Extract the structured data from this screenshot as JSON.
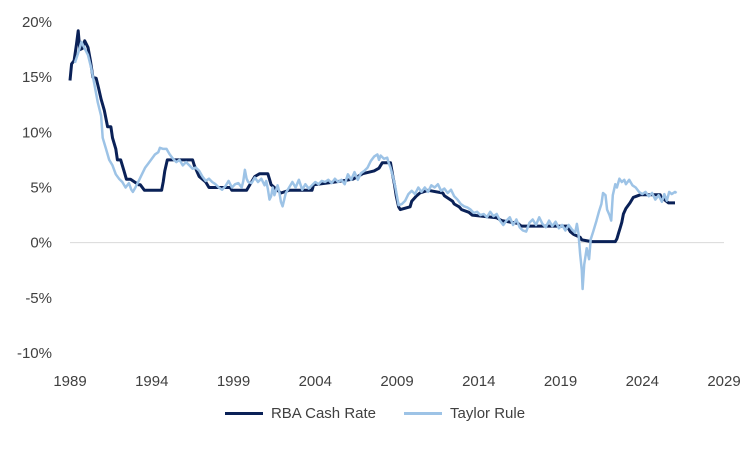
{
  "chart_data": {
    "type": "line",
    "title": "",
    "xlabel": "",
    "ylabel": "",
    "xlim": [
      1989,
      2029
    ],
    "ylim": [
      -10,
      20
    ],
    "x_ticks": [
      "1989",
      "1994",
      "1999",
      "2004",
      "2009",
      "2014",
      "2019",
      "2024",
      "2029"
    ],
    "y_ticks": [
      "-10%",
      "-5%",
      "0%",
      "5%",
      "10%",
      "15%",
      "20%"
    ],
    "grid": false,
    "legend_position": "bottom",
    "series": [
      {
        "name": "RBA Cash Rate",
        "color": "#0a2157",
        "points": [
          [
            1989.0,
            14.7
          ],
          [
            1989.1,
            16.2
          ],
          [
            1989.25,
            16.5
          ],
          [
            1989.4,
            18.0
          ],
          [
            1989.5,
            19.2
          ],
          [
            1989.6,
            17.5
          ],
          [
            1989.75,
            17.6
          ],
          [
            1989.9,
            18.3
          ],
          [
            1990.1,
            17.7
          ],
          [
            1990.25,
            16.5
          ],
          [
            1990.4,
            15.0
          ],
          [
            1990.6,
            14.9
          ],
          [
            1990.75,
            14.0
          ],
          [
            1990.9,
            13.0
          ],
          [
            1991.1,
            12.0
          ],
          [
            1991.3,
            10.5
          ],
          [
            1991.5,
            10.5
          ],
          [
            1991.6,
            9.5
          ],
          [
            1991.8,
            8.5
          ],
          [
            1991.9,
            7.5
          ],
          [
            1992.1,
            7.5
          ],
          [
            1992.3,
            6.5
          ],
          [
            1992.45,
            5.75
          ],
          [
            1992.7,
            5.75
          ],
          [
            1993.2,
            5.25
          ],
          [
            1993.3,
            5.25
          ],
          [
            1993.55,
            4.75
          ],
          [
            1994.6,
            4.75
          ],
          [
            1994.7,
            5.5
          ],
          [
            1994.8,
            6.5
          ],
          [
            1994.95,
            7.5
          ],
          [
            1996.5,
            7.5
          ],
          [
            1996.6,
            7.0
          ],
          [
            1996.75,
            6.5
          ],
          [
            1996.9,
            6.0
          ],
          [
            1997.3,
            5.5
          ],
          [
            1997.5,
            5.0
          ],
          [
            1998.8,
            5.0
          ],
          [
            1998.9,
            4.75
          ],
          [
            1999.8,
            4.75
          ],
          [
            1999.9,
            5.0
          ],
          [
            2000.1,
            5.5
          ],
          [
            2000.3,
            6.0
          ],
          [
            2000.6,
            6.25
          ],
          [
            2001.1,
            6.25
          ],
          [
            2001.2,
            5.75
          ],
          [
            2001.3,
            5.25
          ],
          [
            2001.5,
            5.0
          ],
          [
            2001.7,
            4.75
          ],
          [
            2001.9,
            4.5
          ],
          [
            2002.4,
            4.75
          ],
          [
            2002.5,
            4.75
          ],
          [
            2003.8,
            4.75
          ],
          [
            2003.9,
            5.25
          ],
          [
            2005.2,
            5.5
          ],
          [
            2006.3,
            5.75
          ],
          [
            2006.6,
            6.0
          ],
          [
            2006.9,
            6.25
          ],
          [
            2007.6,
            6.5
          ],
          [
            2007.9,
            6.75
          ],
          [
            2008.1,
            7.25
          ],
          [
            2008.6,
            7.25
          ],
          [
            2008.75,
            6.0
          ],
          [
            2008.85,
            5.25
          ],
          [
            2008.95,
            4.25
          ],
          [
            2009.1,
            3.25
          ],
          [
            2009.2,
            3.0
          ],
          [
            2009.8,
            3.25
          ],
          [
            2009.9,
            3.75
          ],
          [
            2010.2,
            4.25
          ],
          [
            2010.4,
            4.5
          ],
          [
            2010.9,
            4.75
          ],
          [
            2011.8,
            4.5
          ],
          [
            2011.9,
            4.25
          ],
          [
            2012.4,
            3.75
          ],
          [
            2012.5,
            3.5
          ],
          [
            2012.8,
            3.25
          ],
          [
            2012.95,
            3.0
          ],
          [
            2013.4,
            2.75
          ],
          [
            2013.6,
            2.5
          ],
          [
            2015.1,
            2.25
          ],
          [
            2015.4,
            2.0
          ],
          [
            2016.4,
            1.75
          ],
          [
            2016.6,
            1.5
          ],
          [
            2019.4,
            1.5
          ],
          [
            2019.5,
            1.25
          ],
          [
            2019.6,
            1.0
          ],
          [
            2019.8,
            0.75
          ],
          [
            2020.2,
            0.5
          ],
          [
            2020.3,
            0.25
          ],
          [
            2020.9,
            0.1
          ],
          [
            2022.35,
            0.1
          ],
          [
            2022.45,
            0.35
          ],
          [
            2022.55,
            0.85
          ],
          [
            2022.65,
            1.35
          ],
          [
            2022.75,
            1.85
          ],
          [
            2022.85,
            2.6
          ],
          [
            2023.0,
            3.1
          ],
          [
            2023.25,
            3.6
          ],
          [
            2023.45,
            4.1
          ],
          [
            2023.9,
            4.35
          ],
          [
            2025.1,
            4.35
          ],
          [
            2025.15,
            4.1
          ],
          [
            2025.4,
            3.85
          ],
          [
            2025.6,
            3.6
          ],
          [
            2026.0,
            3.6
          ]
        ]
      },
      {
        "name": "Taylor Rule",
        "color": "#9dc3e6",
        "points": [
          [
            1989.3,
            16.3
          ],
          [
            1989.5,
            17.2
          ],
          [
            1989.7,
            18.2
          ],
          [
            1989.9,
            17.6
          ],
          [
            1990.1,
            17.0
          ],
          [
            1990.3,
            15.8
          ],
          [
            1990.5,
            14.3
          ],
          [
            1990.7,
            12.7
          ],
          [
            1990.9,
            11.5
          ],
          [
            1991.0,
            9.5
          ],
          [
            1991.2,
            8.5
          ],
          [
            1991.4,
            7.5
          ],
          [
            1991.6,
            7.0
          ],
          [
            1991.8,
            6.2
          ],
          [
            1992.0,
            5.8
          ],
          [
            1992.2,
            5.5
          ],
          [
            1992.4,
            5.0
          ],
          [
            1992.6,
            5.4
          ],
          [
            1992.75,
            4.8
          ],
          [
            1992.85,
            4.6
          ],
          [
            1993.0,
            5.0
          ],
          [
            1993.2,
            5.6
          ],
          [
            1993.4,
            6.2
          ],
          [
            1993.6,
            6.8
          ],
          [
            1993.8,
            7.2
          ],
          [
            1994.0,
            7.6
          ],
          [
            1994.2,
            8.0
          ],
          [
            1994.4,
            8.2
          ],
          [
            1994.5,
            8.6
          ],
          [
            1994.7,
            8.5
          ],
          [
            1994.9,
            8.5
          ],
          [
            1995.1,
            8.0
          ],
          [
            1995.3,
            7.6
          ],
          [
            1995.5,
            7.3
          ],
          [
            1995.7,
            7.5
          ],
          [
            1995.9,
            7.0
          ],
          [
            1996.1,
            7.3
          ],
          [
            1996.3,
            7.0
          ],
          [
            1996.5,
            6.7
          ],
          [
            1996.7,
            6.8
          ],
          [
            1996.9,
            6.5
          ],
          [
            1997.1,
            6.0
          ],
          [
            1997.3,
            5.6
          ],
          [
            1997.5,
            5.8
          ],
          [
            1997.7,
            5.5
          ],
          [
            1997.9,
            5.3
          ],
          [
            1998.1,
            5.0
          ],
          [
            1998.3,
            4.8
          ],
          [
            1998.5,
            5.1
          ],
          [
            1998.7,
            5.6
          ],
          [
            1998.9,
            5.0
          ],
          [
            1999.1,
            5.3
          ],
          [
            1999.3,
            5.4
          ],
          [
            1999.5,
            5.0
          ],
          [
            1999.6,
            5.6
          ],
          [
            1999.7,
            6.6
          ],
          [
            1999.8,
            5.8
          ],
          [
            1999.9,
            5.5
          ],
          [
            2000.1,
            5.4
          ],
          [
            2000.3,
            5.9
          ],
          [
            2000.5,
            5.5
          ],
          [
            2000.7,
            5.8
          ],
          [
            2000.9,
            5.2
          ],
          [
            2001.0,
            5.6
          ],
          [
            2001.1,
            4.9
          ],
          [
            2001.2,
            3.9
          ],
          [
            2001.3,
            4.2
          ],
          [
            2001.4,
            5.0
          ],
          [
            2001.5,
            4.3
          ],
          [
            2001.7,
            5.2
          ],
          [
            2001.8,
            4.6
          ],
          [
            2001.9,
            3.7
          ],
          [
            2002.0,
            3.3
          ],
          [
            2002.2,
            4.5
          ],
          [
            2002.4,
            5.0
          ],
          [
            2002.6,
            5.5
          ],
          [
            2002.8,
            5.0
          ],
          [
            2003.0,
            5.7
          ],
          [
            2003.2,
            4.8
          ],
          [
            2003.4,
            5.3
          ],
          [
            2003.6,
            4.9
          ],
          [
            2003.8,
            5.2
          ],
          [
            2004.0,
            5.5
          ],
          [
            2004.2,
            5.3
          ],
          [
            2004.4,
            5.6
          ],
          [
            2004.6,
            5.5
          ],
          [
            2004.8,
            5.7
          ],
          [
            2005.0,
            5.4
          ],
          [
            2005.2,
            5.8
          ],
          [
            2005.4,
            5.5
          ],
          [
            2005.6,
            5.7
          ],
          [
            2005.8,
            5.3
          ],
          [
            2006.0,
            6.2
          ],
          [
            2006.2,
            5.7
          ],
          [
            2006.4,
            6.4
          ],
          [
            2006.6,
            5.7
          ],
          [
            2006.8,
            6.3
          ],
          [
            2007.0,
            6.5
          ],
          [
            2007.2,
            6.8
          ],
          [
            2007.4,
            7.4
          ],
          [
            2007.6,
            7.8
          ],
          [
            2007.8,
            8.0
          ],
          [
            2007.9,
            7.5
          ],
          [
            2008.0,
            7.9
          ],
          [
            2008.2,
            7.6
          ],
          [
            2008.4,
            7.7
          ],
          [
            2008.5,
            7.2
          ],
          [
            2008.6,
            6.8
          ],
          [
            2008.75,
            6.0
          ],
          [
            2008.9,
            5.0
          ],
          [
            2009.0,
            4.2
          ],
          [
            2009.1,
            3.4
          ],
          [
            2009.3,
            3.5
          ],
          [
            2009.5,
            3.8
          ],
          [
            2009.7,
            4.4
          ],
          [
            2009.9,
            4.7
          ],
          [
            2010.1,
            4.4
          ],
          [
            2010.3,
            5.0
          ],
          [
            2010.5,
            4.6
          ],
          [
            2010.7,
            5.0
          ],
          [
            2010.9,
            4.6
          ],
          [
            2011.1,
            5.2
          ],
          [
            2011.3,
            5.0
          ],
          [
            2011.5,
            5.3
          ],
          [
            2011.7,
            4.7
          ],
          [
            2011.9,
            4.9
          ],
          [
            2012.1,
            4.5
          ],
          [
            2012.3,
            4.8
          ],
          [
            2012.5,
            4.2
          ],
          [
            2012.7,
            3.9
          ],
          [
            2012.9,
            3.5
          ],
          [
            2013.1,
            3.3
          ],
          [
            2013.3,
            3.2
          ],
          [
            2013.5,
            3.0
          ],
          [
            2013.7,
            2.7
          ],
          [
            2013.9,
            2.8
          ],
          [
            2014.1,
            2.5
          ],
          [
            2014.3,
            2.6
          ],
          [
            2014.5,
            2.3
          ],
          [
            2014.7,
            2.8
          ],
          [
            2014.9,
            2.4
          ],
          [
            2015.1,
            2.6
          ],
          [
            2015.3,
            2.0
          ],
          [
            2015.5,
            1.6
          ],
          [
            2015.7,
            2.0
          ],
          [
            2015.9,
            2.3
          ],
          [
            2016.1,
            1.6
          ],
          [
            2016.3,
            2.1
          ],
          [
            2016.5,
            1.4
          ],
          [
            2016.7,
            1.1
          ],
          [
            2016.9,
            1.0
          ],
          [
            2017.1,
            1.8
          ],
          [
            2017.3,
            2.1
          ],
          [
            2017.5,
            1.6
          ],
          [
            2017.7,
            2.3
          ],
          [
            2017.9,
            1.7
          ],
          [
            2018.1,
            1.4
          ],
          [
            2018.3,
            2.0
          ],
          [
            2018.5,
            1.5
          ],
          [
            2018.7,
            1.9
          ],
          [
            2018.9,
            1.3
          ],
          [
            2019.1,
            1.6
          ],
          [
            2019.3,
            1.1
          ],
          [
            2019.5,
            1.6
          ],
          [
            2019.7,
            1.2
          ],
          [
            2019.9,
            0.9
          ],
          [
            2020.0,
            1.7
          ],
          [
            2020.1,
            0.8
          ],
          [
            2020.2,
            -1.0
          ],
          [
            2020.3,
            -2.5
          ],
          [
            2020.35,
            -4.2
          ],
          [
            2020.45,
            -2.0
          ],
          [
            2020.6,
            -0.5
          ],
          [
            2020.75,
            -1.5
          ],
          [
            2020.85,
            0.3
          ],
          [
            2021.0,
            1.0
          ],
          [
            2021.2,
            2.0
          ],
          [
            2021.35,
            2.8
          ],
          [
            2021.5,
            3.5
          ],
          [
            2021.6,
            4.5
          ],
          [
            2021.75,
            4.3
          ],
          [
            2021.85,
            3.0
          ],
          [
            2022.0,
            2.5
          ],
          [
            2022.1,
            2.0
          ],
          [
            2022.2,
            4.3
          ],
          [
            2022.35,
            5.3
          ],
          [
            2022.45,
            5.0
          ],
          [
            2022.6,
            5.8
          ],
          [
            2022.75,
            5.5
          ],
          [
            2022.9,
            5.7
          ],
          [
            2023.0,
            5.3
          ],
          [
            2023.2,
            5.7
          ],
          [
            2023.4,
            5.2
          ],
          [
            2023.6,
            5.0
          ],
          [
            2023.8,
            4.6
          ],
          [
            2024.0,
            4.4
          ],
          [
            2024.2,
            4.6
          ],
          [
            2024.4,
            4.2
          ],
          [
            2024.6,
            4.5
          ],
          [
            2024.8,
            3.9
          ],
          [
            2025.0,
            4.3
          ],
          [
            2025.2,
            3.7
          ],
          [
            2025.35,
            4.4
          ],
          [
            2025.5,
            3.8
          ],
          [
            2025.65,
            4.6
          ],
          [
            2025.8,
            4.4
          ],
          [
            2026.0,
            4.6
          ],
          [
            2026.1,
            4.5
          ]
        ]
      }
    ]
  }
}
